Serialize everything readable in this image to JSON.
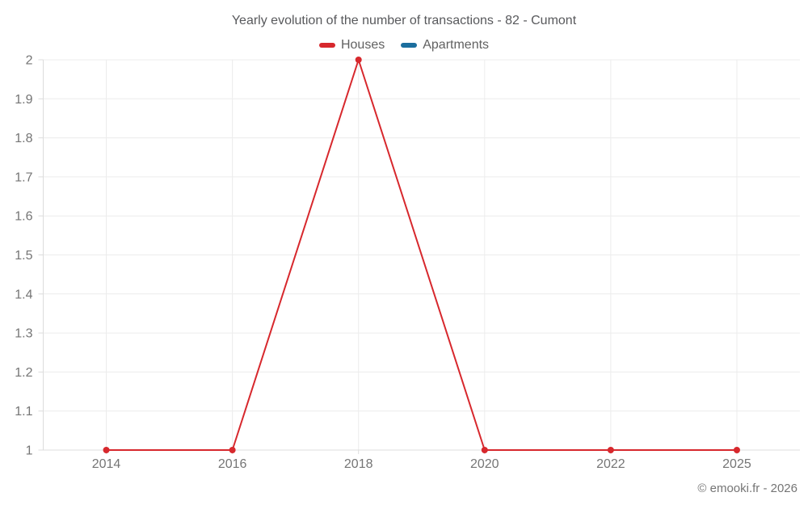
{
  "page": {
    "copyright": "© emooki.fr - 2026"
  },
  "chart_data": {
    "type": "line",
    "title": "Yearly evolution of the number of transactions - 82 - Cumont",
    "categories": [
      "2014",
      "2016",
      "2018",
      "2020",
      "2022",
      "2025"
    ],
    "series": [
      {
        "name": "Houses",
        "color": "#d7282d",
        "values": [
          1,
          1,
          2,
          1,
          1,
          1
        ]
      },
      {
        "name": "Apartments",
        "color": "#1b6e9e",
        "values": []
      }
    ],
    "ylim": [
      1,
      2
    ],
    "y_tick_labels": [
      "1",
      "1.1",
      "1.2",
      "1.3",
      "1.4",
      "1.5",
      "1.6",
      "1.7",
      "1.8",
      "1.9",
      "2"
    ],
    "grid": true,
    "legend_position": "top",
    "xlabel": "",
    "ylabel": ""
  },
  "colors": {
    "grid": "#ececec",
    "axis": "#dcdcdc",
    "tick_text": "#757575",
    "title_text": "#58595c"
  }
}
